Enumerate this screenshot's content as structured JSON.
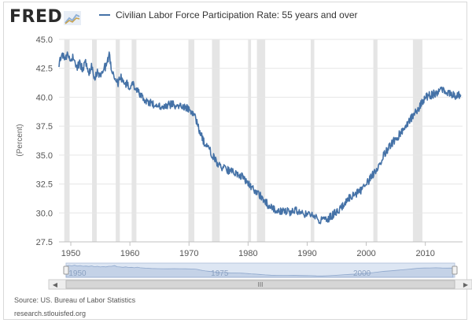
{
  "header": {
    "logo_text": "FRED",
    "logo_icon": "chart-line-icon"
  },
  "colors": {
    "series": "#4572a7",
    "recession": "#e5e5e5",
    "grid": "#e6e6e6",
    "navigator_fill": "#c4d2e7",
    "navigator_mask": "#dde6f3"
  },
  "chart_data": {
    "type": "line",
    "title": "",
    "xlabel": "",
    "ylabel": "(Percent)",
    "xlim": [
      1948,
      2016.3
    ],
    "ylim": [
      27.5,
      45.0
    ],
    "yticks": [
      "27.5",
      "30.0",
      "32.5",
      "35.0",
      "37.5",
      "40.0",
      "42.5",
      "45.0"
    ],
    "xticks": [
      "1950",
      "1960",
      "1970",
      "1980",
      "1990",
      "2000",
      "2010"
    ],
    "grid": true,
    "legend": "top-left",
    "series": [
      {
        "name": "Civilian Labor Force Participation Rate: 55 years and over",
        "x": [
          1948.0,
          1948.5,
          1949.0,
          1949.5,
          1950.0,
          1950.5,
          1951.0,
          1951.5,
          1952.0,
          1952.5,
          1953.0,
          1953.5,
          1954.0,
          1954.5,
          1955.0,
          1955.5,
          1956.0,
          1956.5,
          1957.0,
          1957.5,
          1958.0,
          1958.5,
          1959.0,
          1959.5,
          1960.0,
          1960.5,
          1961.0,
          1961.5,
          1962.0,
          1963.0,
          1964.0,
          1965.0,
          1966.0,
          1967.0,
          1968.0,
          1969.0,
          1970.0,
          1970.5,
          1971.0,
          1971.5,
          1972.0,
          1972.5,
          1973.0,
          1973.5,
          1974.0,
          1974.5,
          1975.0,
          1975.5,
          1976.0,
          1976.5,
          1977.0,
          1977.5,
          1978.0,
          1978.5,
          1979.0,
          1979.5,
          1980.0,
          1980.5,
          1981.0,
          1981.5,
          1982.0,
          1982.5,
          1983.0,
          1984.0,
          1985.0,
          1986.0,
          1987.0,
          1988.0,
          1989.0,
          1990.0,
          1991.0,
          1992.0,
          1993.0,
          1994.0,
          1995.0,
          1996.0,
          1997.0,
          1998.0,
          1999.0,
          2000.0,
          2001.0,
          2002.0,
          2003.0,
          2004.0,
          2005.0,
          2006.0,
          2007.0,
          2008.0,
          2009.0,
          2010.0,
          2011.0,
          2012.0,
          2013.0,
          2014.0,
          2015.0,
          2016.0
        ],
        "y": [
          42.8,
          43.8,
          43.2,
          44.0,
          43.0,
          43.6,
          42.6,
          43.0,
          42.4,
          43.2,
          42.0,
          42.6,
          41.6,
          42.2,
          41.8,
          42.6,
          42.6,
          43.6,
          42.0,
          41.6,
          41.2,
          41.8,
          41.0,
          41.2,
          40.6,
          41.4,
          40.6,
          40.4,
          40.0,
          39.6,
          39.4,
          39.3,
          39.2,
          39.4,
          39.3,
          39.2,
          39.0,
          38.8,
          38.4,
          37.6,
          36.8,
          36.2,
          35.8,
          35.4,
          35.0,
          34.6,
          34.2,
          34.0,
          33.8,
          33.7,
          33.6,
          33.5,
          33.4,
          33.3,
          33.1,
          32.9,
          32.6,
          32.3,
          32.0,
          31.8,
          31.5,
          31.2,
          30.9,
          30.4,
          30.2,
          30.1,
          30.1,
          30.2,
          30.0,
          29.9,
          29.8,
          29.4,
          29.3,
          29.7,
          30.1,
          30.6,
          31.2,
          31.6,
          31.9,
          32.5,
          33.2,
          34.0,
          35.0,
          35.8,
          36.4,
          37.0,
          37.8,
          38.4,
          39.2,
          40.0,
          40.2,
          40.4,
          40.6,
          40.3,
          40.1,
          40.2
        ]
      }
    ],
    "recessions": [
      [
        1948.9,
        1949.8
      ],
      [
        1953.6,
        1954.4
      ],
      [
        1957.6,
        1958.3
      ],
      [
        1960.3,
        1961.1
      ],
      [
        1969.9,
        1970.9
      ],
      [
        1973.9,
        1975.2
      ],
      [
        1980.0,
        1980.5
      ],
      [
        1981.5,
        1982.9
      ],
      [
        1990.6,
        1991.2
      ],
      [
        2001.2,
        2001.9
      ],
      [
        2007.9,
        2009.5
      ]
    ],
    "navigator_labels": [
      "1950",
      "1975",
      "2000"
    ]
  },
  "navigator": {
    "scroll_center_label": "III",
    "left_arrow": "◀",
    "right_arrow": "▶"
  },
  "footer": {
    "source": "Source: US. Bureau of Labor Statistics",
    "site": "research.stlouisfed.org"
  }
}
